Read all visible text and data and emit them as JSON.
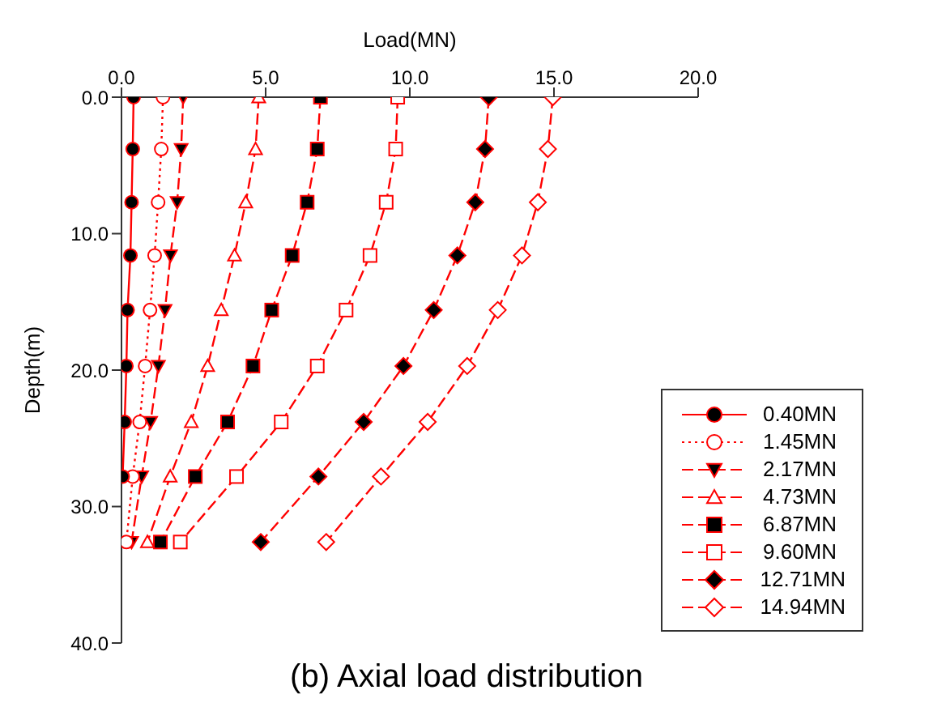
{
  "chart_data": {
    "type": "line",
    "title": "(b) Axial load distribution",
    "xlabel": "Load(MN)",
    "ylabel": "Depth(m)",
    "orientation": "horizontal",
    "x": [
      0,
      3.8,
      7.7,
      11.6,
      15.6,
      19.7,
      23.8,
      27.8,
      32.6
    ],
    "xlim": [
      0,
      20
    ],
    "xticks": [
      {
        "value": 0,
        "label": "0.0"
      },
      {
        "value": 5,
        "label": "5.0"
      },
      {
        "value": 10,
        "label": "10.0"
      },
      {
        "value": 15,
        "label": "15.0"
      },
      {
        "value": 20,
        "label": "20.0"
      }
    ],
    "ylim": [
      40,
      0
    ],
    "yticks": [
      {
        "value": 0,
        "label": "0.0"
      },
      {
        "value": 10,
        "label": "10.0"
      },
      {
        "value": 20,
        "label": "20.0"
      },
      {
        "value": 30,
        "label": "30.0"
      },
      {
        "value": 40,
        "label": "40.0"
      }
    ],
    "grid": false,
    "legend": "bottom right",
    "series": [
      {
        "name": "0.40MN",
        "color": "#ff0000",
        "marker": "circle",
        "line_style": "solid",
        "values": [
          0.42,
          0.39,
          0.35,
          0.31,
          0.21,
          0.17,
          0.11,
          0.04,
          null
        ]
      },
      {
        "name": "1.45MN",
        "color": "#ff0000",
        "marker": "circle",
        "line_style": "dotted",
        "values": [
          1.44,
          1.38,
          1.27,
          1.15,
          0.99,
          0.82,
          0.63,
          0.39,
          0.17
        ]
      },
      {
        "name": "2.17MN",
        "color": "#ff0000",
        "marker": "triangle",
        "line_style": "dashed",
        "values": [
          2.14,
          2.07,
          1.93,
          1.7,
          1.51,
          1.28,
          1.01,
          0.7,
          0.35
        ]
      },
      {
        "name": "4.73MN",
        "color": "#ff0000",
        "marker": "triangle",
        "line_style": "dashed",
        "values": [
          4.76,
          4.65,
          4.31,
          3.92,
          3.46,
          2.99,
          2.42,
          1.69,
          0.9
        ]
      },
      {
        "name": "6.87MN",
        "color": "#ff0000",
        "marker": "square",
        "line_style": "dashed",
        "values": [
          6.9,
          6.79,
          6.44,
          5.92,
          5.21,
          4.56,
          3.68,
          2.56,
          1.35
        ]
      },
      {
        "name": "9.60MN",
        "color": "#ff0000",
        "marker": "square",
        "line_style": "dashed",
        "values": [
          9.58,
          9.51,
          9.18,
          8.62,
          7.79,
          6.79,
          5.54,
          3.99,
          2.04
        ]
      },
      {
        "name": "12.71MN",
        "color": "#ff0000",
        "marker": "diamond",
        "line_style": "dashed",
        "values": [
          12.74,
          12.61,
          12.27,
          11.65,
          10.83,
          9.78,
          8.4,
          6.83,
          4.83
        ]
      },
      {
        "name": "14.94MN",
        "color": "#ff0000",
        "marker": "diamond",
        "line_style": "dashed",
        "values": [
          14.96,
          14.79,
          14.44,
          13.89,
          13.05,
          11.99,
          10.62,
          9.0,
          7.1
        ]
      }
    ]
  }
}
